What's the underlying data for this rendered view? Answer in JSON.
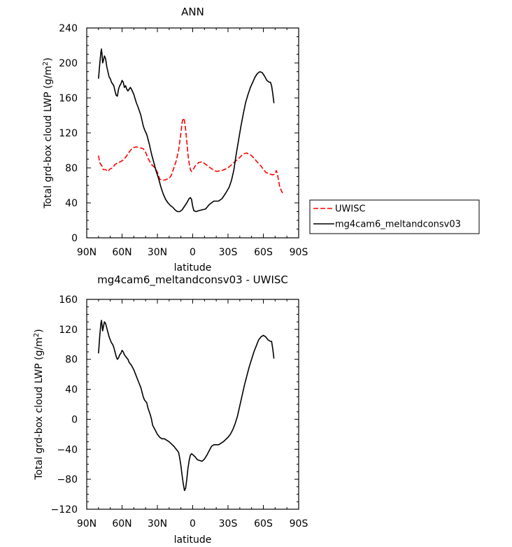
{
  "chart_data": [
    {
      "type": "line",
      "title": "ANN",
      "xlabel": "latitude",
      "ylabel": "Total grd-box cloud LWP (g/m²)",
      "ylabel_text": "Total grd-box cloud LWP (g/m",
      "ylabel_sup": "2",
      "ylabel_close": ")",
      "xlim": [
        90,
        -90
      ],
      "ylim": [
        0,
        240
      ],
      "x_ticks": [
        90,
        60,
        30,
        0,
        -30,
        -60,
        -90
      ],
      "x_tick_labels": [
        "90N",
        "60N",
        "30N",
        "0",
        "30S",
        "60S",
        "90S"
      ],
      "y_ticks": [
        0,
        40,
        80,
        120,
        160,
        200,
        240
      ],
      "y_tick_labels": [
        "0",
        "40",
        "80",
        "120",
        "160",
        "200",
        "240"
      ],
      "legend_position": "right",
      "series": [
        {
          "name": "UWISC",
          "color": "#ff0000",
          "dash": "dashed",
          "points": [
            [
              80,
              94
            ],
            [
              79,
              86
            ],
            [
              77,
              82
            ],
            [
              76,
              78
            ],
            [
              74,
              78
            ],
            [
              72,
              76
            ],
            [
              70,
              79
            ],
            [
              68,
              80
            ],
            [
              66,
              84
            ],
            [
              63,
              86
            ],
            [
              60,
              88
            ],
            [
              57,
              92
            ],
            [
              54,
              98
            ],
            [
              51,
              103
            ],
            [
              48,
              104
            ],
            [
              45,
              103
            ],
            [
              42,
              102
            ],
            [
              40,
              98
            ],
            [
              38,
              91
            ],
            [
              35,
              84
            ],
            [
              32,
              80
            ],
            [
              30,
              75
            ],
            [
              28,
              67
            ],
            [
              26,
              66
            ],
            [
              24,
              66
            ],
            [
              22,
              67
            ],
            [
              20,
              68
            ],
            [
              18,
              72
            ],
            [
              16,
              80
            ],
            [
              14,
              88
            ],
            [
              12,
              100
            ],
            [
              10,
              120
            ],
            [
              9,
              132
            ],
            [
              8,
              137
            ],
            [
              7,
              134
            ],
            [
              6,
              124
            ],
            [
              5,
              110
            ],
            [
              4,
              95
            ],
            [
              3,
              85
            ],
            [
              2,
              78
            ],
            [
              1,
              76
            ],
            [
              0,
              77
            ],
            [
              -2,
              82
            ],
            [
              -5,
              86
            ],
            [
              -8,
              87
            ],
            [
              -12,
              83
            ],
            [
              -16,
              79
            ],
            [
              -20,
              76
            ],
            [
              -25,
              77
            ],
            [
              -30,
              80
            ],
            [
              -35,
              86
            ],
            [
              -40,
              92
            ],
            [
              -43,
              96
            ],
            [
              -46,
              97
            ],
            [
              -50,
              94
            ],
            [
              -54,
              88
            ],
            [
              -58,
              82
            ],
            [
              -62,
              75
            ],
            [
              -65,
              73
            ],
            [
              -68,
              72
            ],
            [
              -70,
              73
            ],
            [
              -71,
              77
            ],
            [
              -72,
              73
            ],
            [
              -73,
              65
            ],
            [
              -74,
              58
            ],
            [
              -75,
              55
            ],
            [
              -77,
              49
            ]
          ]
        },
        {
          "name": "mg4cam6_meltandconsv03",
          "color": "#000000",
          "dash": "solid",
          "points": [
            [
              80,
              182
            ],
            [
              79,
              198
            ],
            [
              78,
              212
            ],
            [
              77.5,
              216
            ],
            [
              77,
              210
            ],
            [
              76.5,
              200
            ],
            [
              76,
              202
            ],
            [
              75,
              208
            ],
            [
              74,
              205
            ],
            [
              73,
              196
            ],
            [
              72,
              190
            ],
            [
              71,
              184
            ],
            [
              70,
              182
            ],
            [
              69,
              178
            ],
            [
              68,
              176
            ],
            [
              67,
              174
            ],
            [
              66,
              168
            ],
            [
              65,
              163
            ],
            [
              64,
              162
            ],
            [
              63,
              170
            ],
            [
              62,
              174
            ],
            [
              61,
              176
            ],
            [
              60,
              180
            ],
            [
              59,
              178
            ],
            [
              58,
              172
            ],
            [
              57,
              174
            ],
            [
              56,
              170
            ],
            [
              55,
              168
            ],
            [
              54,
              170
            ],
            [
              53,
              172
            ],
            [
              52,
              170
            ],
            [
              50,
              164
            ],
            [
              48,
              155
            ],
            [
              46,
              148
            ],
            [
              44,
              140
            ],
            [
              42,
              128
            ],
            [
              41,
              124
            ],
            [
              39,
              118
            ],
            [
              37,
              108
            ],
            [
              35,
              96
            ],
            [
              33,
              86
            ],
            [
              31,
              76
            ],
            [
              29,
              68
            ],
            [
              27,
              58
            ],
            [
              25,
              50
            ],
            [
              23,
              44
            ],
            [
              21,
              40
            ],
            [
              19,
              37
            ],
            [
              17,
              35
            ],
            [
              15,
              32
            ],
            [
              13,
              30
            ],
            [
              11,
              30
            ],
            [
              9,
              32
            ],
            [
              7,
              36
            ],
            [
              5,
              40
            ],
            [
              3,
              45
            ],
            [
              2,
              46
            ],
            [
              1,
              44
            ],
            [
              0,
              36
            ],
            [
              -1,
              31
            ],
            [
              -3,
              30
            ],
            [
              -5,
              31
            ],
            [
              -8,
              32
            ],
            [
              -11,
              33
            ],
            [
              -14,
              38
            ],
            [
              -16,
              40
            ],
            [
              -18,
              42
            ],
            [
              -20,
              42
            ],
            [
              -22,
              42
            ],
            [
              -25,
              45
            ],
            [
              -28,
              51
            ],
            [
              -31,
              58
            ],
            [
              -33,
              66
            ],
            [
              -35,
              78
            ],
            [
              -37,
              96
            ],
            [
              -39,
              112
            ],
            [
              -41,
              128
            ],
            [
              -43,
              142
            ],
            [
              -45,
              155
            ],
            [
              -47,
              164
            ],
            [
              -49,
              172
            ],
            [
              -51,
              178
            ],
            [
              -53,
              184
            ],
            [
              -55,
              188
            ],
            [
              -57,
              190
            ],
            [
              -59,
              189
            ],
            [
              -61,
              185
            ],
            [
              -63,
              180
            ],
            [
              -65,
              178
            ],
            [
              -66,
              178
            ],
            [
              -67,
              174
            ],
            [
              -68,
              165
            ],
            [
              -69,
              154
            ]
          ]
        }
      ]
    },
    {
      "type": "line",
      "title": "mg4cam6_meltandconsv03 - UWISC",
      "xlabel": "latitude",
      "ylabel": "Total grd-box cloud LWP (g/m²)",
      "ylabel_text": "Total grd-box cloud LWP (g/m",
      "ylabel_sup": "2",
      "ylabel_close": ")",
      "xlim": [
        90,
        -90
      ],
      "ylim": [
        -120,
        160
      ],
      "x_ticks": [
        90,
        60,
        30,
        0,
        -30,
        -60,
        -90
      ],
      "x_tick_labels": [
        "90N",
        "60N",
        "30N",
        "0",
        "30S",
        "60S",
        "90S"
      ],
      "y_ticks": [
        -120,
        -80,
        -40,
        0,
        40,
        80,
        120,
        160
      ],
      "y_tick_labels": [
        "−120",
        "−80",
        "−40",
        "0",
        "40",
        "80",
        "120",
        "160"
      ],
      "series": [
        {
          "color": "#000000",
          "dash": "solid",
          "points": [
            [
              80,
              88
            ],
            [
              79,
              110
            ],
            [
              78,
              128
            ],
            [
              77.5,
              132
            ],
            [
              77,
              126
            ],
            [
              76.5,
              118
            ],
            [
              76,
              122
            ],
            [
              75,
              130
            ],
            [
              74,
              128
            ],
            [
              73,
              122
            ],
            [
              72,
              116
            ],
            [
              71,
              110
            ],
            [
              70,
              106
            ],
            [
              69,
              102
            ],
            [
              68,
              100
            ],
            [
              67,
              96
            ],
            [
              66,
              90
            ],
            [
              65,
              84
            ],
            [
              64,
              80
            ],
            [
              63,
              82
            ],
            [
              62,
              86
            ],
            [
              61,
              88
            ],
            [
              60,
              92
            ],
            [
              59,
              90
            ],
            [
              58,
              86
            ],
            [
              57,
              84
            ],
            [
              56,
              82
            ],
            [
              55,
              80
            ],
            [
              54,
              76
            ],
            [
              53,
              74
            ],
            [
              52,
              72
            ],
            [
              50,
              66
            ],
            [
              48,
              58
            ],
            [
              46,
              50
            ],
            [
              44,
              42
            ],
            [
              42,
              30
            ],
            [
              41,
              26
            ],
            [
              39,
              22
            ],
            [
              38,
              15
            ],
            [
              36,
              6
            ],
            [
              35,
              0
            ],
            [
              34,
              -8
            ],
            [
              32,
              -14
            ],
            [
              30,
              -20
            ],
            [
              28,
              -24
            ],
            [
              26,
              -26
            ],
            [
              24,
              -26
            ],
            [
              22,
              -28
            ],
            [
              20,
              -30
            ],
            [
              18,
              -33
            ],
            [
              16,
              -36
            ],
            [
              14,
              -40
            ],
            [
              12,
              -44
            ],
            [
              11,
              -52
            ],
            [
              10,
              -62
            ],
            [
              9,
              -75
            ],
            [
              8,
              -86
            ],
            [
              7,
              -95
            ],
            [
              6,
              -92
            ],
            [
              5,
              -80
            ],
            [
              4,
              -65
            ],
            [
              3,
              -55
            ],
            [
              2,
              -48
            ],
            [
              1,
              -46
            ],
            [
              0,
              -47
            ],
            [
              -2,
              -50
            ],
            [
              -4,
              -54
            ],
            [
              -6,
              -55
            ],
            [
              -8,
              -56
            ],
            [
              -10,
              -53
            ],
            [
              -12,
              -48
            ],
            [
              -14,
              -42
            ],
            [
              -16,
              -36
            ],
            [
              -18,
              -34
            ],
            [
              -20,
              -34
            ],
            [
              -22,
              -34
            ],
            [
              -24,
              -32
            ],
            [
              -26,
              -30
            ],
            [
              -28,
              -27
            ],
            [
              -30,
              -24
            ],
            [
              -32,
              -20
            ],
            [
              -34,
              -14
            ],
            [
              -36,
              -6
            ],
            [
              -38,
              4
            ],
            [
              -40,
              18
            ],
            [
              -42,
              32
            ],
            [
              -44,
              46
            ],
            [
              -46,
              58
            ],
            [
              -48,
              70
            ],
            [
              -50,
              80
            ],
            [
              -52,
              90
            ],
            [
              -54,
              98
            ],
            [
              -56,
              106
            ],
            [
              -58,
              110
            ],
            [
              -60,
              112
            ],
            [
              -62,
              110
            ],
            [
              -64,
              106
            ],
            [
              -66,
              104
            ],
            [
              -67,
              104
            ],
            [
              -68,
              94
            ],
            [
              -69,
              81
            ]
          ]
        }
      ]
    }
  ]
}
